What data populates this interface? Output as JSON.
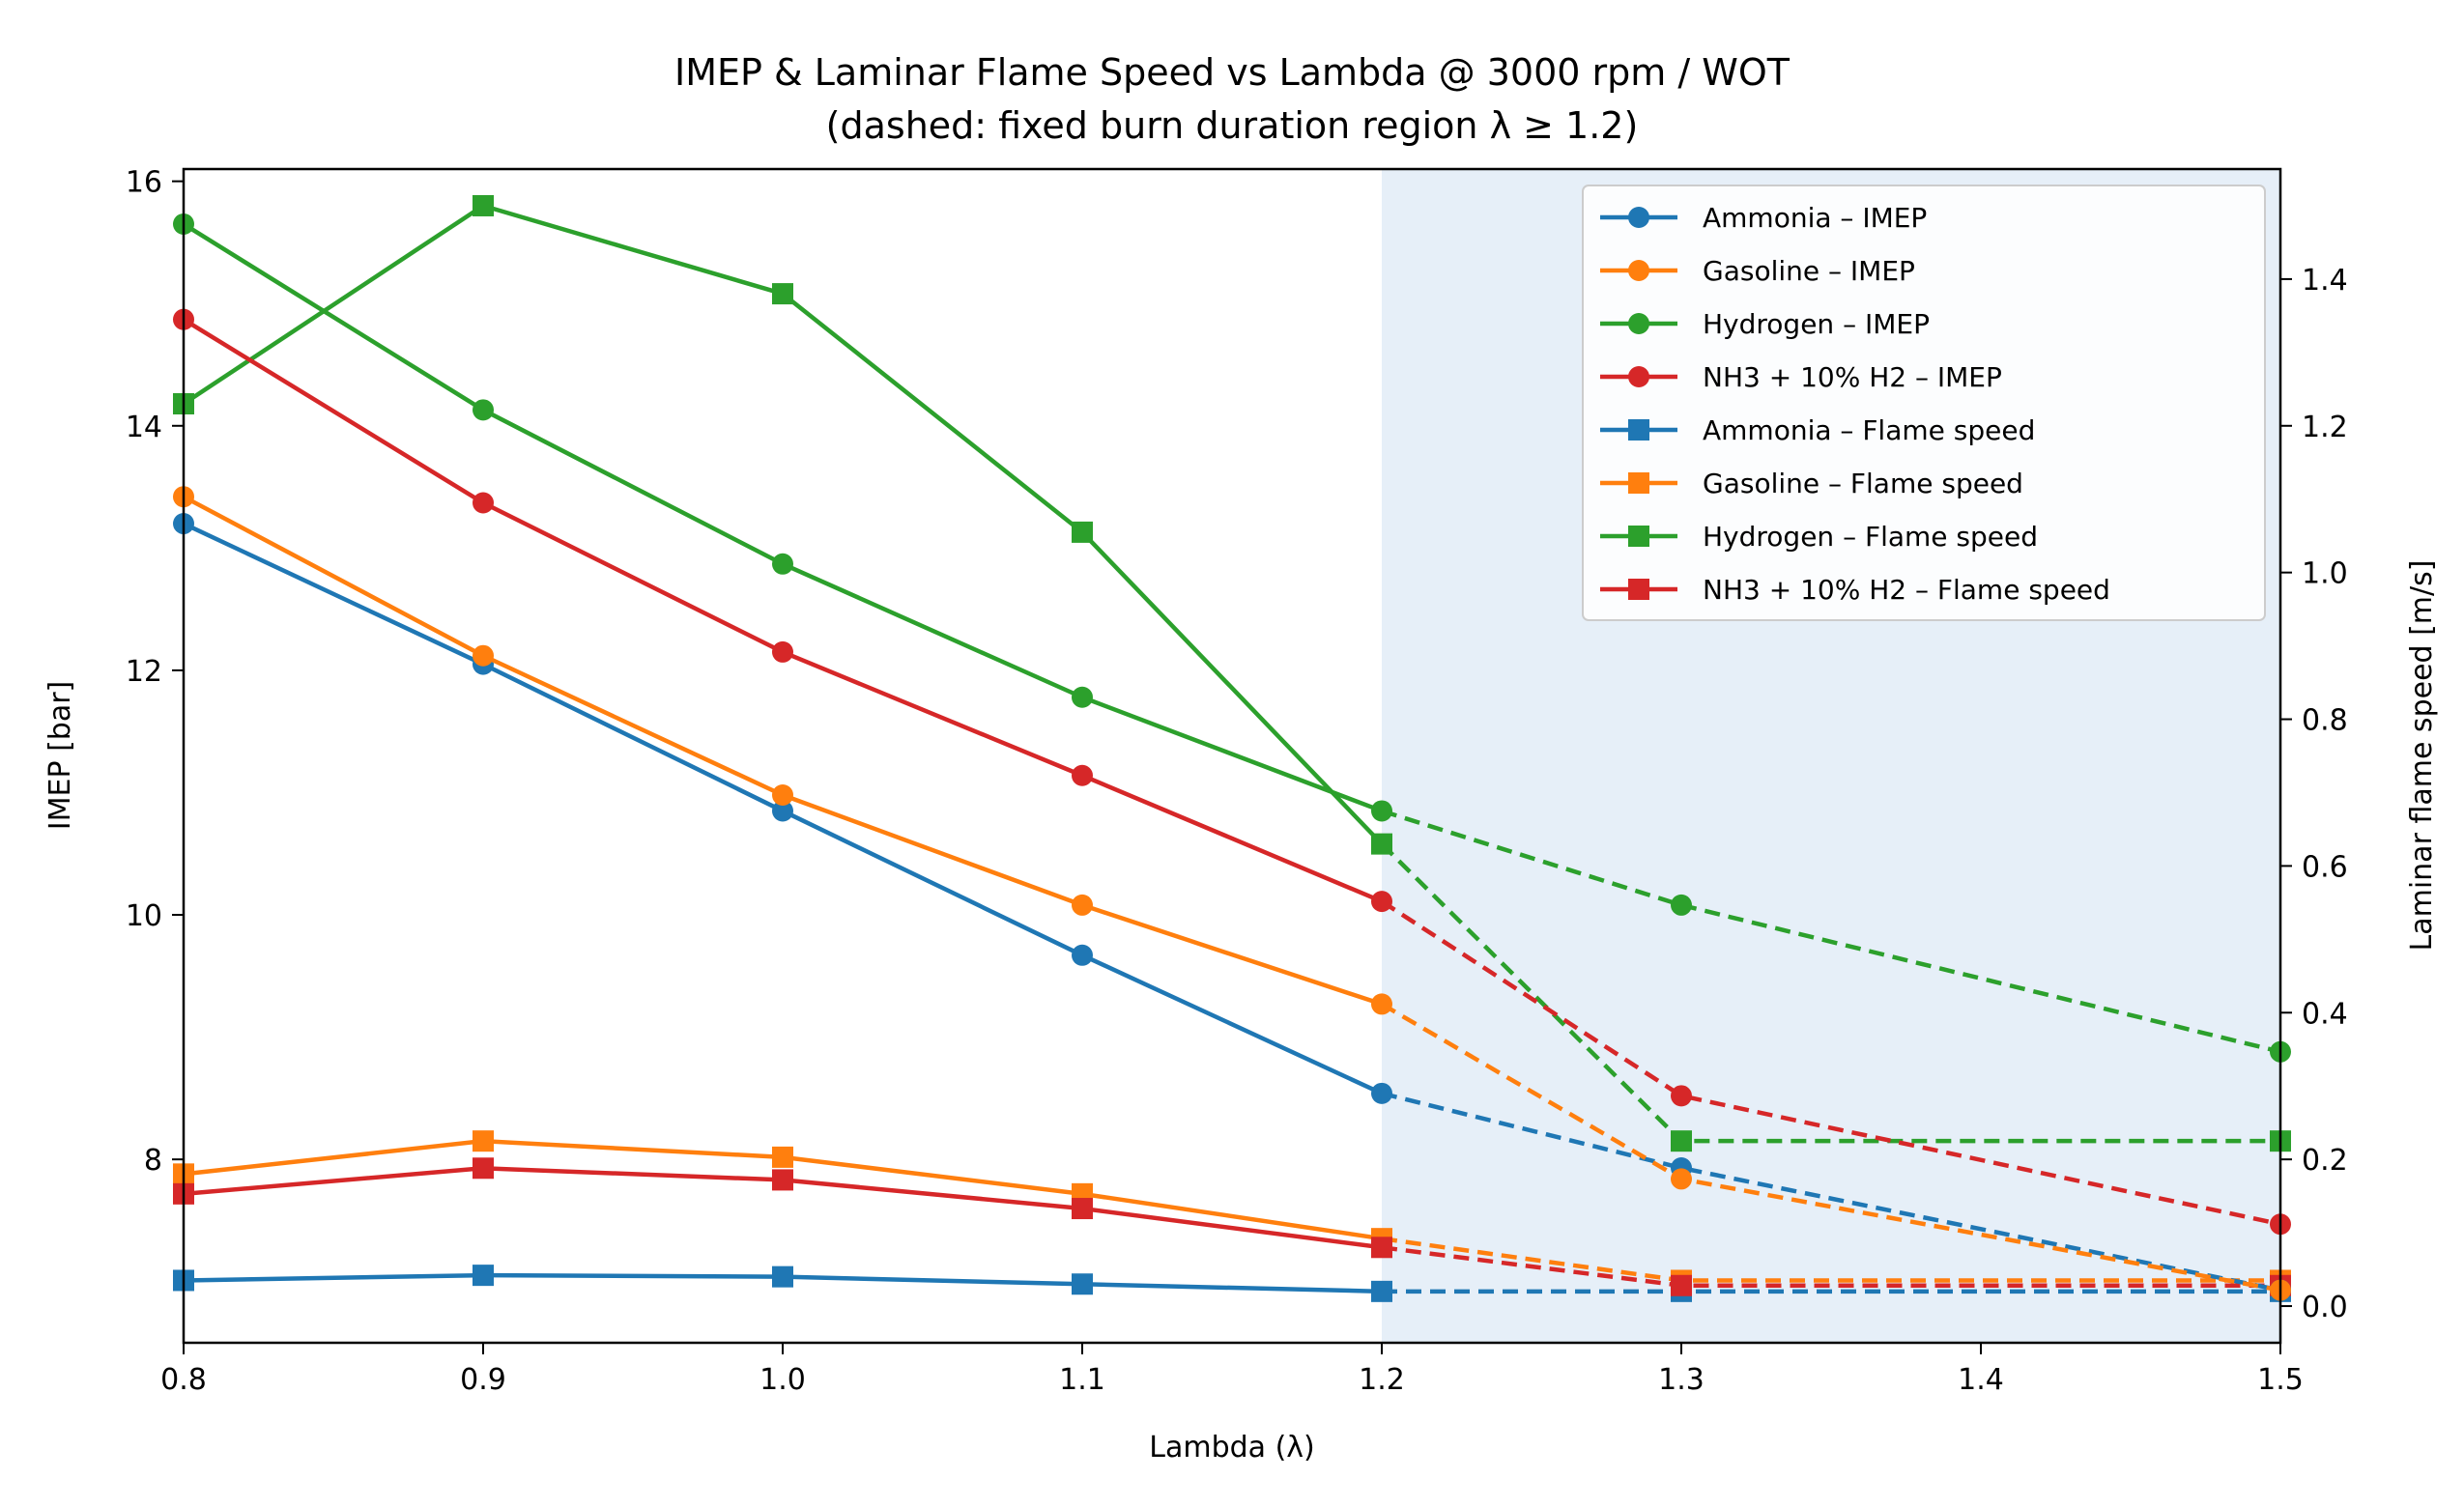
{
  "chart_data": {
    "type": "line",
    "title": "IMEP & Laminar Flame Speed vs Lambda @ 3000 rpm / WOT",
    "subtitle": "(dashed: fixed burn duration region λ ≥ 1.2)",
    "xlabel": "Lambda (λ)",
    "ylabel_left": "IMEP [bar]",
    "ylabel_right": "Laminar flame speed [m/s]",
    "x": [
      0.8,
      0.9,
      1.0,
      1.1,
      1.2,
      1.3,
      1.5
    ],
    "xlim": [
      0.8,
      1.5
    ],
    "ylim_left": [
      6.5,
      16.1
    ],
    "ylim_right": [
      -0.05,
      1.55
    ],
    "x_ticks": [
      "0.8",
      "0.9",
      "1.0",
      "1.1",
      "1.2",
      "1.3",
      "1.4",
      "1.5"
    ],
    "y_ticks_left": [
      "8",
      "10",
      "12",
      "14",
      "16"
    ],
    "y_ticks_right": [
      "0.0",
      "0.2",
      "0.4",
      "0.6",
      "0.8",
      "1.0",
      "1.2",
      "1.4"
    ],
    "shaded_region": {
      "x_start": 1.2,
      "x_end": 1.5,
      "color": "#e6eff8"
    },
    "dashed_from_x": 1.2,
    "grid": false,
    "legend_position": "top-right",
    "series": [
      {
        "name": "Ammonia – IMEP",
        "axis": "left",
        "marker": "circle",
        "color": "#1f77b4",
        "values": [
          13.2,
          12.05,
          10.85,
          9.67,
          8.54,
          7.93,
          6.93
        ]
      },
      {
        "name": "Gasoline – IMEP",
        "axis": "left",
        "marker": "circle",
        "color": "#ff7f0e",
        "values": [
          13.42,
          12.12,
          10.98,
          10.08,
          9.27,
          7.84,
          6.93
        ]
      },
      {
        "name": "Hydrogen – IMEP",
        "axis": "left",
        "marker": "circle",
        "color": "#2ca02c",
        "values": [
          15.65,
          14.13,
          12.87,
          11.78,
          10.85,
          10.08,
          8.88
        ]
      },
      {
        "name": "NH3 + 10% H2 – IMEP",
        "axis": "left",
        "marker": "circle",
        "color": "#d62728",
        "values": [
          14.87,
          13.37,
          12.15,
          11.14,
          10.11,
          8.52,
          7.47
        ]
      },
      {
        "name": "Ammonia – Flame speed",
        "axis": "right",
        "marker": "square",
        "color": "#1f77b4",
        "values": [
          0.035,
          0.042,
          0.04,
          0.03,
          0.02,
          0.02,
          0.02
        ]
      },
      {
        "name": "Gasoline – Flame speed",
        "axis": "right",
        "marker": "square",
        "color": "#ff7f0e",
        "values": [
          0.18,
          0.225,
          0.203,
          0.153,
          0.092,
          0.035,
          0.035
        ]
      },
      {
        "name": "Hydrogen – Flame speed",
        "axis": "right",
        "marker": "square",
        "color": "#2ca02c",
        "values": [
          1.23,
          1.5,
          1.38,
          1.055,
          0.63,
          0.225,
          0.225
        ]
      },
      {
        "name": "NH3 + 10% H2 – Flame speed",
        "axis": "right",
        "marker": "square",
        "color": "#d62728",
        "values": [
          0.153,
          0.188,
          0.172,
          0.133,
          0.08,
          0.028,
          0.028
        ]
      }
    ]
  }
}
